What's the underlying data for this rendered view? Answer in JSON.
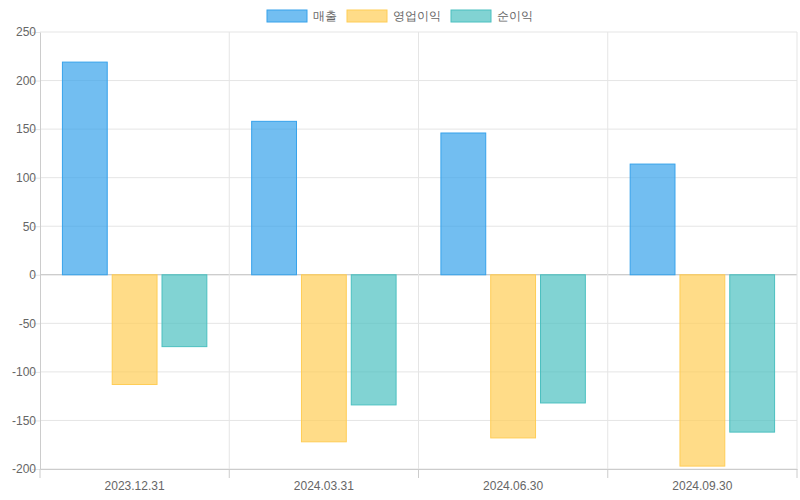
{
  "chart_data": {
    "type": "bar",
    "categories": [
      "2023.12.31",
      "2024.03.31",
      "2024.06.30",
      "2024.09.30"
    ],
    "series": [
      {
        "name": "매출",
        "color": "#36a2eb",
        "values": [
          219,
          158,
          146,
          114
        ]
      },
      {
        "name": "영업이익",
        "color": "#ffcd56",
        "values": [
          -113,
          -172,
          -168,
          -197
        ]
      },
      {
        "name": "순이익",
        "color": "#4bc0c0",
        "values": [
          -74,
          -134,
          -132,
          -162
        ]
      }
    ],
    "ylim": [
      -200,
      250
    ],
    "yticks": [
      -200,
      -150,
      -100,
      -50,
      0,
      50,
      100,
      150,
      200,
      250
    ],
    "grid": true,
    "legend": "top"
  }
}
